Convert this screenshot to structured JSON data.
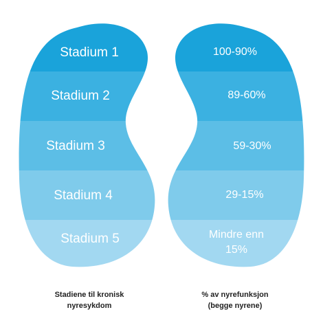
{
  "stages": [
    {
      "label": "Stadium 1",
      "percent": "100-90%",
      "color": "#1aa3da"
    },
    {
      "label": "Stadium 2",
      "percent": "89-60%",
      "color": "#3bb1e1"
    },
    {
      "label": "Stadium 3",
      "percent": "59-30%",
      "color": "#5cbee6"
    },
    {
      "label": "Stadium 4",
      "percent": "29-15%",
      "color": "#7fcbeb"
    },
    {
      "label": "Stadium 5",
      "percent_line1": "Mindre enn",
      "percent_line2": "15%",
      "color": "#a2d8f1"
    }
  ],
  "captions": {
    "left": "Stadiene til kronisk\nnyresykdom",
    "right": "% av nyrefunksjon\n(begge nyrene)"
  }
}
